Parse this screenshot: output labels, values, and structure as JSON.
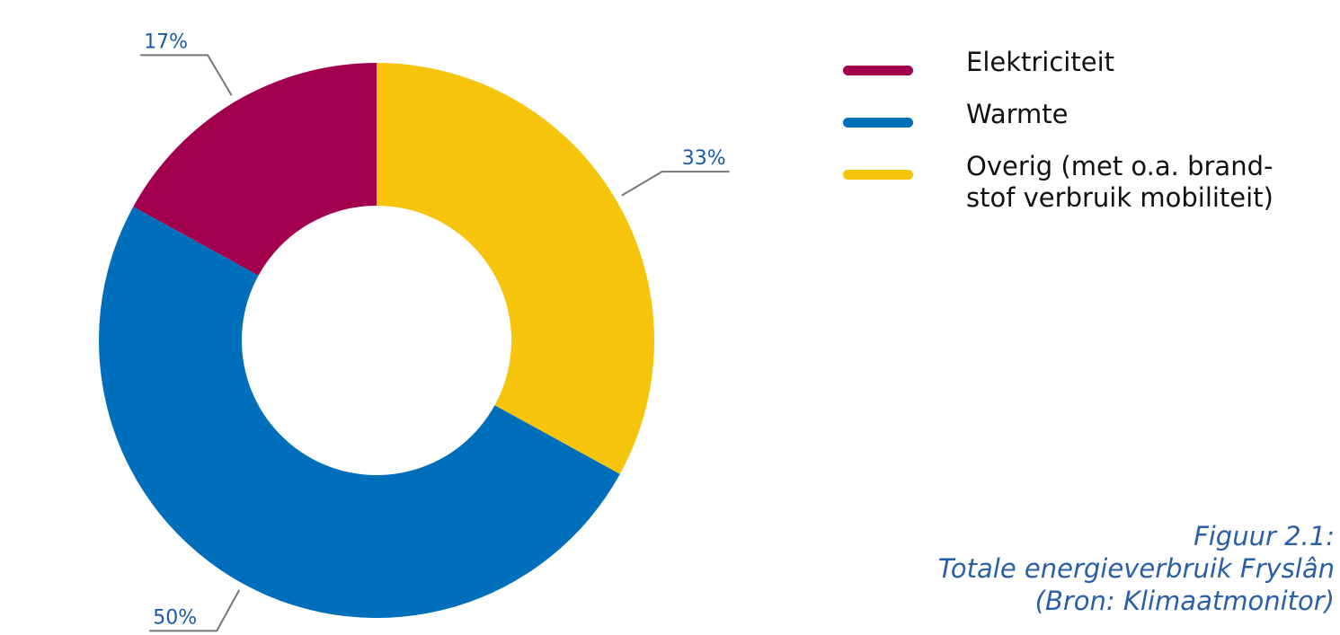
{
  "chart_data": {
    "type": "pie",
    "donut": true,
    "categories": [
      "Elektriciteit",
      "Warmte",
      "Overig (met o.a. brandstof verbruik mobiliteit)"
    ],
    "values": [
      17,
      50,
      33
    ],
    "value_labels": [
      "17%",
      "50%",
      "33%"
    ],
    "colors": [
      "#a2004e",
      "#006fbb",
      "#f5c40b"
    ],
    "legend_position": "right"
  },
  "legend": {
    "items": [
      {
        "label": "Elektriciteit",
        "color": "#a2004e"
      },
      {
        "label": "Warmte",
        "color": "#006fbb"
      },
      {
        "label": "Overig (met o.a. brand-stof verbruik mobiliteit)",
        "color": "#f5c40b"
      }
    ]
  },
  "caption": {
    "line1": "Figuur 2.1:",
    "line2": "Totale energieverbruik Fryslân",
    "line3": "(Bron: Klimaatmonitor)"
  }
}
